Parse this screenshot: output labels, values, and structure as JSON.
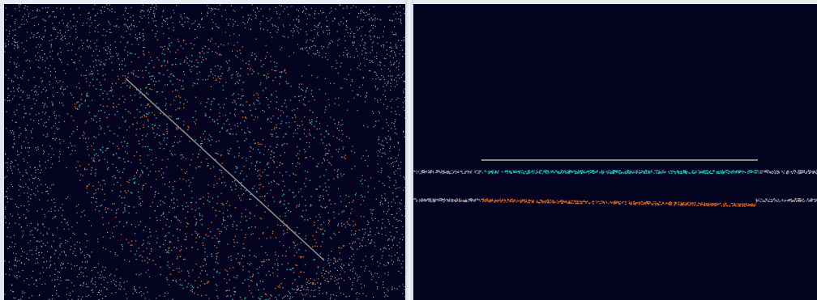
{
  "window": {
    "title": ""
  },
  "colors": {
    "background": "#030320",
    "noise_points": "#9a9aa4",
    "cluster_a": "#1fb8b8",
    "cluster_b": "#d8641c",
    "projection_line": "#8c8a82",
    "frame": "#dfe6ee"
  },
  "views": [
    {
      "id": "scatter-view",
      "kind": "2d-point-cloud",
      "seed": 7
    },
    {
      "id": "projection-view",
      "kind": "1d-projection",
      "seed": 11
    }
  ]
}
